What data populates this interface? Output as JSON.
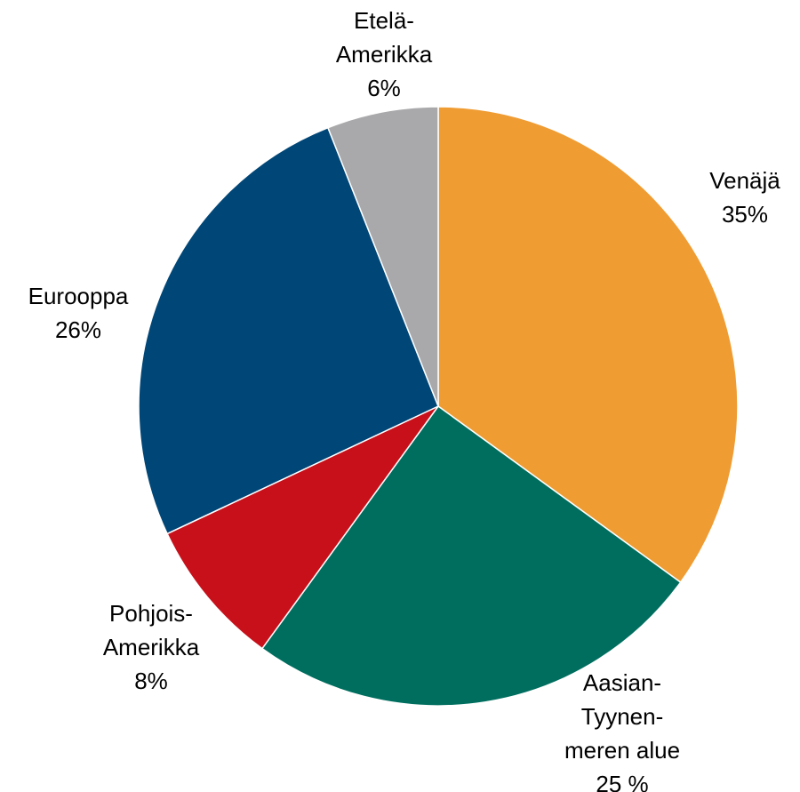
{
  "chart_data": {
    "type": "pie",
    "categories": [
      [
        "Venäjä"
      ],
      [
        "Aasian-",
        "Tyynen-",
        "meren alue"
      ],
      [
        "Pohjois-",
        "Amerikka"
      ],
      [
        "Eurooppa"
      ],
      [
        "Etelä-",
        "Amerikka"
      ]
    ],
    "values": [
      35,
      25,
      8,
      26,
      6
    ],
    "value_labels": [
      "35%",
      "25 %",
      "8%",
      "26%",
      "6%"
    ],
    "colors": [
      "#ef9c33",
      "#006e5f",
      "#c8101a",
      "#004677",
      "#a9a9ab"
    ]
  }
}
